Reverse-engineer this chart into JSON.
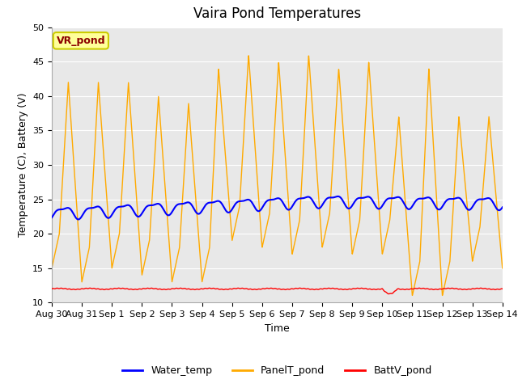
{
  "title": "Vaira Pond Temperatures",
  "xlabel": "Time",
  "ylabel": "Temperature (C), Battery (V)",
  "annotation": "VR_pond",
  "ylim": [
    10,
    50
  ],
  "xlim": [
    0,
    15
  ],
  "xtick_labels": [
    "Aug 30",
    "Aug 31",
    "Sep 1",
    "Sep 2",
    "Sep 3",
    "Sep 4",
    "Sep 5",
    "Sep 6",
    "Sep 7",
    "Sep 8",
    "Sep 9",
    "Sep 10",
    "Sep 11",
    "Sep 12",
    "Sep 13",
    "Sep 14"
  ],
  "xtick_positions": [
    0,
    1,
    2,
    3,
    4,
    5,
    6,
    7,
    8,
    9,
    10,
    11,
    12,
    13,
    14,
    15
  ],
  "water_color": "#0000ff",
  "panel_color": "#ffaa00",
  "batt_color": "#ff0000",
  "bg_color": "#e8e8e8",
  "fig_bg_color": "#ffffff",
  "grid_color": "#ffffff",
  "legend_labels": [
    "Water_temp",
    "PanelT_pond",
    "BattV_pond"
  ],
  "title_fontsize": 12,
  "label_fontsize": 9,
  "tick_fontsize": 8,
  "annot_fontsize": 9,
  "annot_color": "#8b0000",
  "annot_bg": "#ffff99",
  "annot_edge": "#cccc00"
}
